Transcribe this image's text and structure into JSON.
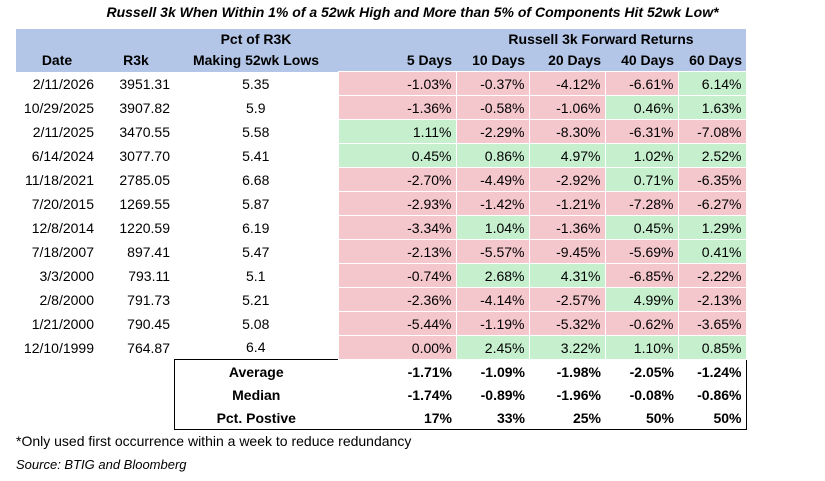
{
  "title": "Russell 3k When Within 1% of a 52wk High and More than 5% of Components Hit 52wk Low*",
  "header": {
    "row1": {
      "pct": "Pct of R3K",
      "fwd": "Russell 3k Forward Returns"
    },
    "row2": [
      "Date",
      "R3k",
      "Making 52wk Lows",
      "5 Days",
      "10 Days",
      "20 Days",
      "40 Days",
      "60 Days"
    ]
  },
  "rows": [
    {
      "date": "2/11/2026",
      "r3k": "3951.31",
      "pct": "5.35",
      "r": [
        "-1.03%",
        "-0.37%",
        "-4.12%",
        "-6.61%",
        "6.14%"
      ]
    },
    {
      "date": "10/29/2025",
      "r3k": "3907.82",
      "pct": "5.9",
      "r": [
        "-1.36%",
        "-0.58%",
        "-1.06%",
        "0.46%",
        "1.63%"
      ]
    },
    {
      "date": "2/11/2025",
      "r3k": "3470.55",
      "pct": "5.58",
      "r": [
        "1.11%",
        "-2.29%",
        "-8.30%",
        "-6.31%",
        "-7.08%"
      ]
    },
    {
      "date": "6/14/2024",
      "r3k": "3077.70",
      "pct": "5.41",
      "r": [
        "0.45%",
        "0.86%",
        "4.97%",
        "1.02%",
        "2.52%"
      ]
    },
    {
      "date": "11/18/2021",
      "r3k": "2785.05",
      "pct": "6.68",
      "r": [
        "-2.70%",
        "-4.49%",
        "-2.92%",
        "0.71%",
        "-6.35%"
      ]
    },
    {
      "date": "7/20/2015",
      "r3k": "1269.55",
      "pct": "5.87",
      "r": [
        "-2.93%",
        "-1.42%",
        "-1.21%",
        "-7.28%",
        "-6.27%"
      ]
    },
    {
      "date": "12/8/2014",
      "r3k": "1220.59",
      "pct": "6.19",
      "r": [
        "-3.34%",
        "1.04%",
        "-1.36%",
        "0.45%",
        "1.29%"
      ]
    },
    {
      "date": "7/18/2007",
      "r3k": "897.41",
      "pct": "5.47",
      "r": [
        "-2.13%",
        "-5.57%",
        "-9.45%",
        "-5.69%",
        "0.41%"
      ]
    },
    {
      "date": "3/3/2000",
      "r3k": "793.11",
      "pct": "5.1",
      "r": [
        "-0.74%",
        "2.68%",
        "4.31%",
        "-6.85%",
        "-2.22%"
      ]
    },
    {
      "date": "2/8/2000",
      "r3k": "791.73",
      "pct": "5.21",
      "r": [
        "-2.36%",
        "-4.14%",
        "-2.57%",
        "4.99%",
        "-2.13%"
      ]
    },
    {
      "date": "1/21/2000",
      "r3k": "790.45",
      "pct": "5.08",
      "r": [
        "-5.44%",
        "-1.19%",
        "-5.32%",
        "-0.62%",
        "-3.65%"
      ]
    },
    {
      "date": "12/10/1999",
      "r3k": "764.87",
      "pct": "6.4",
      "r": [
        "0.00%",
        "2.45%",
        "3.22%",
        "1.10%",
        "0.85%"
      ]
    }
  ],
  "summary": [
    {
      "label": "Average",
      "v": [
        "-1.71%",
        "-1.09%",
        "-1.98%",
        "-2.05%",
        "-1.24%"
      ]
    },
    {
      "label": "Median",
      "v": [
        "-1.74%",
        "-0.89%",
        "-1.96%",
        "-0.08%",
        "-0.86%"
      ]
    },
    {
      "label": "Pct. Postive",
      "v": [
        "17%",
        "33%",
        "25%",
        "50%",
        "50%"
      ]
    }
  ],
  "colors": {
    "header_bg": "#b4c6e7",
    "negative_bg": "#f4c7cc",
    "positive_bg": "#c6efce"
  },
  "footnote": "*Only used first occurrence within a week to reduce redundancy",
  "source": "Source: BTIG and Bloomberg"
}
